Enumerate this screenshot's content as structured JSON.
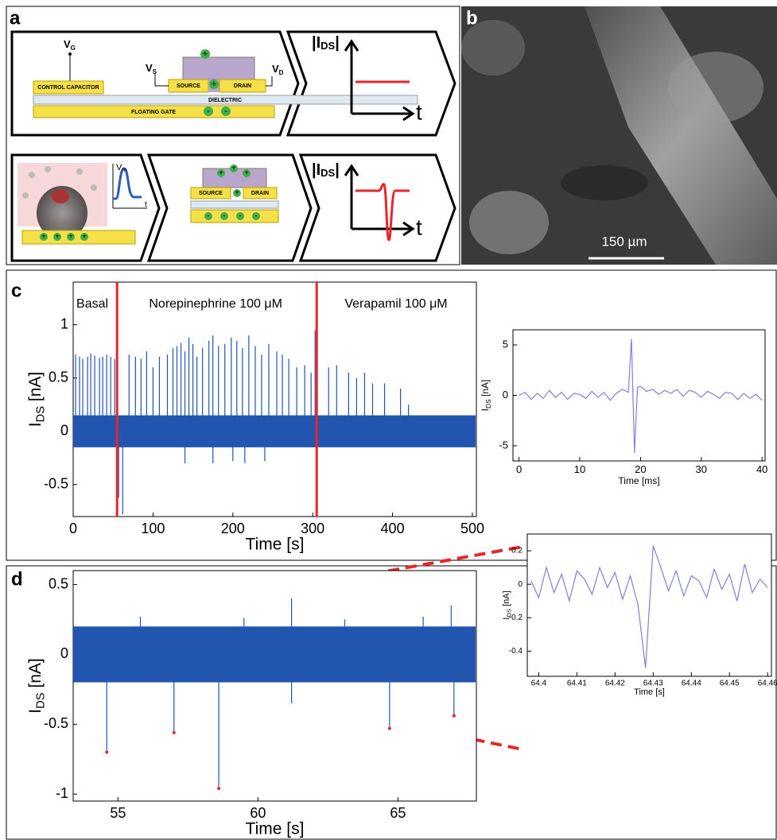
{
  "panel_a": {
    "label": "a",
    "control_capacitor": "CONTROL CAPACITOR",
    "dielectric": "DIELECTRIC",
    "floating_gate": "FLOATING GATE",
    "source": "SOURCE",
    "drain": "DRAIN",
    "v": "V",
    "sub_g": "G",
    "sub_s": "S",
    "sub_d": "D",
    "sub_m": "m",
    "i": "|I",
    "sub_ds": "DS",
    "bar": "|",
    "t": "t",
    "plus": "+",
    "minus": "-"
  },
  "panel_b": {
    "label": "b",
    "scale_bar": "150 µm"
  },
  "chart_data": [
    {
      "type": "spike_trace",
      "label": "c",
      "xlabel": "Time [s]",
      "ylabel": [
        "I",
        "DS",
        " [nA]"
      ],
      "xlim": [
        0,
        505
      ],
      "xticks": [
        0,
        100,
        200,
        300,
        400,
        500
      ],
      "ylim": [
        -0.8,
        1.4
      ],
      "yticks": [
        -0.5,
        0,
        0.5,
        1
      ],
      "color": "#2255b0",
      "band": [
        -0.15,
        0.15
      ],
      "markers": [
        55,
        305
      ],
      "marker_color": "#e8262a",
      "annotations": [
        {
          "text": "Basal",
          "x": 4
        },
        {
          "text": "Norepinephrine 100 μM",
          "x": 95
        },
        {
          "text": "Verapamil 100 μM",
          "x": 340
        }
      ],
      "spikes": {
        "x": [
          3,
          8,
          12,
          18,
          22,
          27,
          33,
          37,
          42,
          47,
          52,
          57,
          62,
          70,
          78,
          85,
          92,
          100,
          108,
          118,
          125,
          130,
          135,
          140,
          145,
          150,
          155,
          162,
          170,
          175,
          182,
          190,
          198,
          205,
          212,
          220,
          228,
          236,
          245,
          255,
          262,
          270,
          280,
          290,
          298,
          303,
          140,
          175,
          200,
          215,
          240,
          320,
          330,
          345,
          355,
          365,
          375,
          390,
          410,
          420
        ],
        "values": [
          0.72,
          0.7,
          0.68,
          0.7,
          0.73,
          0.71,
          0.69,
          0.7,
          0.72,
          0.7,
          0.68,
          -0.62,
          -0.78,
          0.72,
          0.7,
          0.68,
          0.75,
          0.6,
          0.7,
          0.72,
          0.78,
          0.8,
          0.83,
          0.75,
          0.88,
          0.82,
          0.7,
          0.78,
          0.85,
          0.9,
          0.8,
          0.82,
          0.88,
          0.85,
          0.78,
          0.9,
          0.8,
          0.72,
          0.82,
          0.75,
          0.72,
          0.68,
          0.6,
          0.62,
          0.55,
          0.95,
          -0.3,
          -0.3,
          -0.28,
          -0.3,
          -0.28,
          0.6,
          0.62,
          0.55,
          0.5,
          0.55,
          0.45,
          0.45,
          0.4,
          0.25
        ]
      }
    },
    {
      "type": "line",
      "xlabel": "Time [ms]",
      "ylabel": [
        "I",
        "DS",
        " [nA]"
      ],
      "xlim": [
        -1,
        40.5
      ],
      "xticks": [
        0,
        10,
        20,
        30,
        40
      ],
      "ylim": [
        -6.5,
        6.5
      ],
      "yticks": [
        -5,
        0,
        5
      ],
      "color": "#7f7fe0",
      "x": [
        0,
        1,
        2,
        3,
        4,
        5,
        6,
        7,
        8,
        9,
        10,
        11,
        12,
        13,
        14,
        15,
        16,
        17,
        18,
        18.5,
        19,
        19.5,
        20,
        21,
        22,
        23,
        24,
        25,
        26,
        27,
        28,
        29,
        30,
        31,
        32,
        33,
        34,
        35,
        36,
        37,
        38,
        39,
        40
      ],
      "values": [
        0,
        0.3,
        -0.4,
        0.2,
        -0.3,
        0.5,
        -0.2,
        0.3,
        -0.4,
        0.2,
        0.1,
        -0.3,
        0.4,
        -0.2,
        0.3,
        -0.5,
        0.2,
        0.6,
        0.3,
        5.6,
        -5.7,
        0.8,
        0.9,
        0.4,
        0.6,
        0.1,
        0.5,
        0.2,
        0.6,
        -0.1,
        0.5,
        0.3,
        -0.2,
        0.4,
        0.1,
        -0.3,
        0.3,
        0.2,
        -0.4,
        0.2,
        -0.3,
        0.1,
        -0.5
      ]
    },
    {
      "type": "spike_trace",
      "label": "d",
      "xlabel": "Time [s]",
      "ylabel": [
        "I",
        "DS",
        " [nA]"
      ],
      "xlim": [
        53.4,
        67.8
      ],
      "xticks": [
        55,
        60,
        65
      ],
      "ylim": [
        -1.05,
        0.6
      ],
      "yticks": [
        -1,
        -0.5,
        0,
        0.5
      ],
      "color": "#2255b0",
      "band": [
        -0.2,
        0.2
      ],
      "dot_color": "#e8262a",
      "spikes": {
        "x": [
          54.6,
          57,
          58.6,
          61.2,
          61.2,
          64.7,
          66.9,
          67,
          55.8,
          59.5,
          63.1,
          65.9
        ],
        "values": [
          -0.7,
          -0.56,
          -0.96,
          0.4,
          -0.35,
          -0.53,
          0.35,
          -0.44,
          0.27,
          0.26,
          0.25,
          0.27
        ]
      },
      "dots": [
        0,
        1,
        2,
        5,
        7
      ]
    },
    {
      "type": "line",
      "xlabel": "Time [s]",
      "ylabel": [
        "I",
        "DS",
        " [nA]"
      ],
      "xlim": [
        64.397,
        64.461
      ],
      "xticks": [
        64.4,
        64.41,
        64.42,
        64.43,
        64.44,
        64.45,
        64.46
      ],
      "ylim": [
        -0.55,
        0.3
      ],
      "yticks": [
        -0.4,
        -0.2,
        0,
        0.2
      ],
      "color": "#7f7fe0",
      "x": [
        64.398,
        64.4,
        64.402,
        64.404,
        64.406,
        64.408,
        64.41,
        64.412,
        64.414,
        64.416,
        64.418,
        64.42,
        64.422,
        64.424,
        64.426,
        64.428,
        64.43,
        64.432,
        64.434,
        64.436,
        64.438,
        64.44,
        64.442,
        64.444,
        64.446,
        64.448,
        64.45,
        64.452,
        64.454,
        64.456,
        64.458,
        64.46
      ],
      "values": [
        0.02,
        -0.08,
        0.1,
        -0.05,
        0.06,
        -0.1,
        0.08,
        0.03,
        -0.06,
        0.1,
        -0.02,
        0.07,
        -0.09,
        0.05,
        -0.12,
        -0.5,
        0.23,
        0.1,
        -0.04,
        0.08,
        -0.07,
        0.05,
        0.02,
        -0.08,
        0.09,
        -0.03,
        0.06,
        -0.1,
        0.12,
        -0.05,
        0.03,
        -0.02
      ]
    }
  ]
}
